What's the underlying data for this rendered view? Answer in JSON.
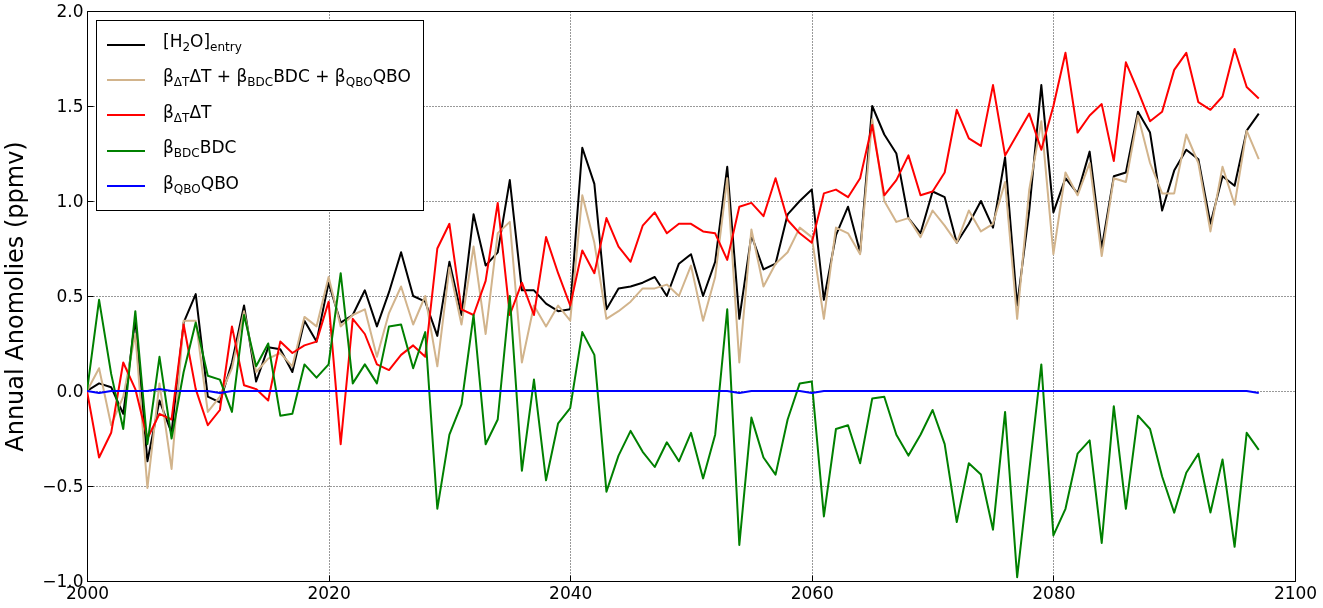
{
  "chart_data": {
    "type": "line",
    "ylabel": "Annual Anomolies (ppmv)",
    "x": [
      2000,
      2001,
      2002,
      2003,
      2004,
      2005,
      2006,
      2007,
      2008,
      2009,
      2010,
      2011,
      2012,
      2013,
      2014,
      2015,
      2016,
      2017,
      2018,
      2019,
      2020,
      2021,
      2022,
      2023,
      2024,
      2025,
      2026,
      2027,
      2028,
      2029,
      2030,
      2031,
      2032,
      2033,
      2034,
      2035,
      2036,
      2037,
      2038,
      2039,
      2040,
      2041,
      2042,
      2043,
      2044,
      2045,
      2046,
      2047,
      2048,
      2049,
      2050,
      2051,
      2052,
      2053,
      2054,
      2055,
      2056,
      2057,
      2058,
      2059,
      2060,
      2061,
      2062,
      2063,
      2064,
      2065,
      2066,
      2067,
      2068,
      2069,
      2070,
      2071,
      2072,
      2073,
      2074,
      2075,
      2076,
      2077,
      2078,
      2079,
      2080,
      2081,
      2082,
      2083,
      2084,
      2085,
      2086,
      2087,
      2088,
      2089,
      2090,
      2091,
      2092,
      2093,
      2094,
      2095,
      2096,
      2097
    ],
    "series": [
      {
        "name": "[H$_{2}$O]$_{entry}$",
        "color": "#000000",
        "values": [
          0.0,
          0.04,
          0.02,
          -0.12,
          0.38,
          -0.37,
          -0.05,
          -0.22,
          0.36,
          0.51,
          -0.03,
          -0.06,
          0.15,
          0.45,
          0.05,
          0.23,
          0.22,
          0.1,
          0.37,
          0.26,
          0.57,
          0.36,
          0.4,
          0.53,
          0.34,
          0.52,
          0.73,
          0.5,
          0.47,
          0.29,
          0.68,
          0.4,
          0.93,
          0.66,
          0.73,
          1.11,
          0.53,
          0.53,
          0.46,
          0.42,
          0.43,
          1.28,
          1.09,
          0.43,
          0.54,
          0.55,
          0.57,
          0.6,
          0.5,
          0.67,
          0.72,
          0.5,
          0.68,
          1.18,
          0.38,
          0.82,
          0.64,
          0.67,
          0.93,
          1.0,
          1.06,
          0.48,
          0.82,
          0.97,
          0.73,
          1.5,
          1.35,
          1.25,
          0.91,
          0.83,
          1.05,
          1.02,
          0.78,
          0.88,
          1.0,
          0.86,
          1.23,
          0.45,
          0.95,
          1.61,
          0.94,
          1.12,
          1.04,
          1.26,
          0.75,
          1.13,
          1.15,
          1.47,
          1.36,
          0.95,
          1.16,
          1.27,
          1.22,
          0.88,
          1.13,
          1.08,
          1.37,
          1.46
        ]
      },
      {
        "name": "β$_{ΔT}$ΔT + β$_{BDC}$BDC + β$_{QBO}$QBO",
        "color": "#d2b48c",
        "values": [
          0.0,
          0.12,
          -0.18,
          -0.03,
          0.3,
          -0.51,
          0.04,
          -0.41,
          0.37,
          0.37,
          -0.11,
          -0.03,
          0.12,
          0.42,
          0.1,
          0.17,
          0.2,
          0.13,
          0.39,
          0.34,
          0.6,
          0.34,
          0.4,
          0.43,
          0.18,
          0.41,
          0.55,
          0.35,
          0.5,
          0.13,
          0.65,
          0.35,
          0.76,
          0.3,
          0.83,
          0.89,
          0.15,
          0.45,
          0.34,
          0.45,
          0.37,
          1.03,
          0.78,
          0.38,
          0.42,
          0.47,
          0.54,
          0.54,
          0.56,
          0.5,
          0.66,
          0.37,
          0.6,
          1.12,
          0.15,
          0.85,
          0.55,
          0.67,
          0.73,
          0.86,
          0.81,
          0.38,
          0.86,
          0.83,
          0.72,
          1.43,
          1.0,
          0.89,
          0.91,
          0.81,
          0.95,
          0.87,
          0.78,
          0.95,
          0.84,
          0.88,
          1.1,
          0.38,
          1.06,
          1.42,
          0.72,
          1.15,
          1.03,
          1.2,
          0.71,
          1.12,
          1.1,
          1.45,
          1.2,
          1.04,
          1.04,
          1.35,
          1.2,
          0.84,
          1.18,
          0.98,
          1.37,
          1.22
        ]
      },
      {
        "name": "β$_{ΔT}$ΔT",
        "color": "#ff0000",
        "values": [
          0.0,
          -0.35,
          -0.22,
          0.15,
          0.01,
          -0.25,
          -0.12,
          -0.15,
          0.35,
          0.01,
          -0.18,
          -0.1,
          0.34,
          0.03,
          0.01,
          -0.05,
          0.26,
          0.2,
          0.24,
          0.26,
          0.47,
          -0.28,
          0.38,
          0.3,
          0.14,
          0.11,
          0.19,
          0.24,
          0.18,
          0.75,
          0.88,
          0.43,
          0.4,
          0.58,
          0.99,
          0.4,
          0.57,
          0.4,
          0.81,
          0.62,
          0.45,
          0.74,
          0.62,
          0.91,
          0.76,
          0.68,
          0.87,
          0.94,
          0.83,
          0.88,
          0.88,
          0.84,
          0.83,
          0.69,
          0.97,
          0.99,
          0.92,
          1.12,
          0.9,
          0.83,
          0.78,
          1.04,
          1.06,
          1.02,
          1.12,
          1.4,
          1.03,
          1.11,
          1.24,
          1.03,
          1.05,
          1.15,
          1.48,
          1.33,
          1.29,
          1.61,
          1.24,
          1.35,
          1.46,
          1.27,
          1.5,
          1.78,
          1.36,
          1.45,
          1.51,
          1.21,
          1.73,
          1.58,
          1.42,
          1.47,
          1.69,
          1.78,
          1.52,
          1.48,
          1.55,
          1.8,
          1.6,
          1.54
        ]
      },
      {
        "name": "β$_{BDC}$BDC",
        "color": "#008000",
        "values": [
          0.0,
          0.48,
          0.09,
          -0.2,
          0.42,
          -0.28,
          0.18,
          -0.25,
          0.1,
          0.36,
          0.08,
          0.06,
          -0.11,
          0.4,
          0.13,
          0.25,
          -0.13,
          -0.12,
          0.14,
          0.07,
          0.14,
          0.62,
          0.04,
          0.14,
          0.04,
          0.34,
          0.35,
          0.12,
          0.31,
          -0.62,
          -0.23,
          -0.07,
          0.4,
          -0.28,
          -0.15,
          0.5,
          -0.42,
          0.06,
          -0.47,
          -0.17,
          -0.09,
          0.31,
          0.19,
          -0.53,
          -0.34,
          -0.21,
          -0.32,
          -0.4,
          -0.27,
          -0.37,
          -0.22,
          -0.46,
          -0.23,
          0.43,
          -0.81,
          -0.14,
          -0.35,
          -0.44,
          -0.15,
          0.04,
          0.05,
          -0.66,
          -0.2,
          -0.18,
          -0.38,
          -0.04,
          -0.03,
          -0.23,
          -0.34,
          -0.23,
          -0.1,
          -0.28,
          -0.69,
          -0.38,
          -0.44,
          -0.73,
          -0.11,
          -0.98,
          -0.42,
          0.14,
          -0.76,
          -0.62,
          -0.33,
          -0.26,
          -0.8,
          -0.08,
          -0.62,
          -0.13,
          -0.2,
          -0.45,
          -0.64,
          -0.43,
          -0.33,
          -0.64,
          -0.36,
          -0.82,
          -0.22,
          -0.31
        ]
      },
      {
        "name": "β$_{QBO}$QBO",
        "color": "#0000ff",
        "values": [
          0.0,
          -0.01,
          0.0,
          0.0,
          0.0,
          0.0,
          0.01,
          0.0,
          0.0,
          0.0,
          0.0,
          -0.01,
          0.0,
          0.0,
          0.0,
          0.0,
          0.0,
          0.0,
          0.0,
          0.0,
          0.0,
          0.0,
          0.0,
          0.0,
          0.0,
          0.0,
          0.0,
          0.0,
          0.0,
          0.0,
          0.0,
          0.0,
          0.0,
          0.0,
          0.0,
          0.0,
          0.0,
          0.0,
          0.0,
          0.0,
          0.0,
          0.0,
          0.0,
          0.0,
          0.0,
          0.0,
          0.0,
          0.0,
          0.0,
          0.0,
          0.0,
          0.0,
          0.0,
          0.0,
          -0.01,
          0.0,
          0.0,
          0.0,
          0.0,
          0.0,
          -0.01,
          0.0,
          0.0,
          0.0,
          0.0,
          0.0,
          0.0,
          0.0,
          0.0,
          0.0,
          0.0,
          0.0,
          0.0,
          0.0,
          0.0,
          0.0,
          0.0,
          0.0,
          0.0,
          0.0,
          0.0,
          0.0,
          0.0,
          0.0,
          0.0,
          0.0,
          0.0,
          0.0,
          0.0,
          0.0,
          0.0,
          0.0,
          0.0,
          0.0,
          0.0,
          0.0,
          0.0,
          -0.01
        ]
      }
    ],
    "xlim": [
      2000,
      2100
    ],
    "xticks": [
      2000,
      2020,
      2040,
      2060,
      2080,
      2100
    ],
    "ylim": [
      -1.0,
      2.0
    ],
    "yticks": [
      {
        "value": -1,
        "label": "−1.0"
      },
      {
        "value": -0.5,
        "label": "−0.5"
      },
      {
        "value": 0,
        "label": "0.0"
      },
      {
        "value": 0.5,
        "label": "0.5"
      },
      {
        "value": 1,
        "label": "1.0"
      },
      {
        "value": 1.5,
        "label": "1.5"
      },
      {
        "value": 2,
        "label": "2.0"
      }
    ],
    "grid": true,
    "legend": "top left",
    "line_style": "solid",
    "marker": "none"
  }
}
